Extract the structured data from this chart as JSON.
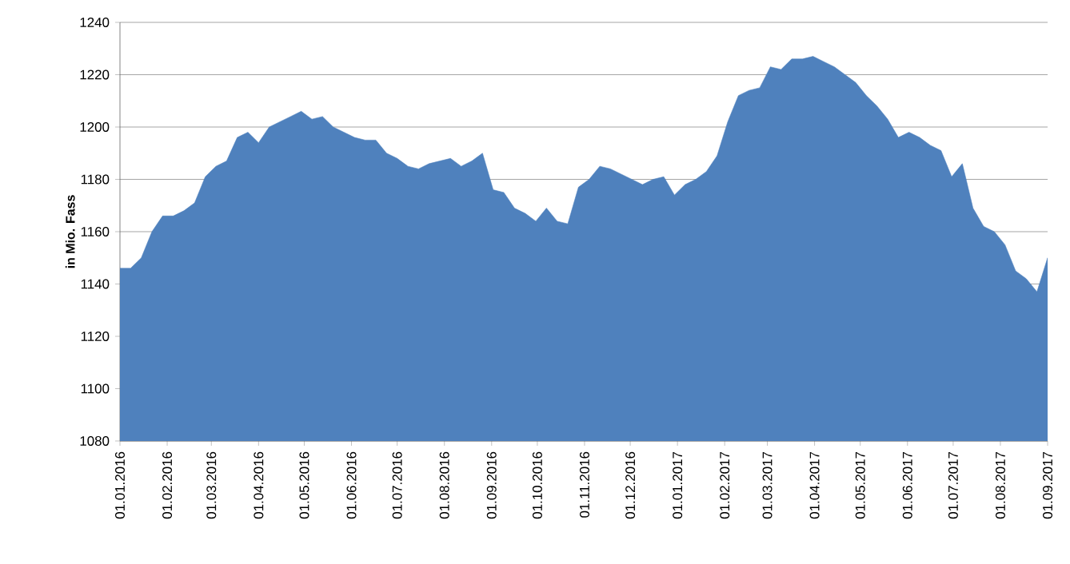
{
  "chart_data": {
    "type": "area",
    "ylabel": "in Mio. Fass",
    "color": "#4f81bd",
    "grid": "y",
    "x": [
      "2016-01-01",
      "2016-01-08",
      "2016-01-15",
      "2016-01-22",
      "2016-01-29",
      "2016-02-05",
      "2016-02-12",
      "2016-02-19",
      "2016-02-26",
      "2016-03-04",
      "2016-03-11",
      "2016-03-18",
      "2016-03-25",
      "2016-04-01",
      "2016-04-08",
      "2016-04-15",
      "2016-04-22",
      "2016-04-29",
      "2016-05-06",
      "2016-05-13",
      "2016-05-20",
      "2016-05-27",
      "2016-06-03",
      "2016-06-10",
      "2016-06-17",
      "2016-06-24",
      "2016-07-01",
      "2016-07-08",
      "2016-07-15",
      "2016-07-22",
      "2016-07-29",
      "2016-08-05",
      "2016-08-12",
      "2016-08-19",
      "2016-08-26",
      "2016-09-02",
      "2016-09-09",
      "2016-09-16",
      "2016-09-23",
      "2016-09-30",
      "2016-10-07",
      "2016-10-14",
      "2016-10-21",
      "2016-10-28",
      "2016-11-04",
      "2016-11-11",
      "2016-11-18",
      "2016-11-25",
      "2016-12-02",
      "2016-12-09",
      "2016-12-16",
      "2016-12-23",
      "2016-12-30",
      "2017-01-06",
      "2017-01-13",
      "2017-01-20",
      "2017-01-27",
      "2017-02-03",
      "2017-02-10",
      "2017-02-17",
      "2017-02-24",
      "2017-03-03",
      "2017-03-10",
      "2017-03-17",
      "2017-03-24",
      "2017-03-31",
      "2017-04-07",
      "2017-04-14",
      "2017-04-21",
      "2017-04-28",
      "2017-05-05",
      "2017-05-12",
      "2017-05-19",
      "2017-05-26",
      "2017-06-02",
      "2017-06-09",
      "2017-06-16",
      "2017-06-23",
      "2017-06-30",
      "2017-07-07",
      "2017-07-14",
      "2017-07-21",
      "2017-07-28",
      "2017-08-04",
      "2017-08-11",
      "2017-08-18",
      "2017-08-25",
      "2017-09-01"
    ],
    "values": [
      1146,
      1146,
      1150,
      1160,
      1166,
      1166,
      1168,
      1171,
      1181,
      1185,
      1187,
      1196,
      1198,
      1194,
      1200,
      1202,
      1204,
      1206,
      1203,
      1204,
      1200,
      1198,
      1196,
      1195,
      1195,
      1190,
      1188,
      1185,
      1184,
      1186,
      1187,
      1188,
      1185,
      1187,
      1190,
      1176,
      1175,
      1169,
      1167,
      1164,
      1169,
      1164,
      1163,
      1177,
      1180,
      1185,
      1184,
      1182,
      1180,
      1178,
      1180,
      1181,
      1174,
      1178,
      1180,
      1183,
      1189,
      1202,
      1212,
      1214,
      1215,
      1223,
      1222,
      1226,
      1226,
      1227,
      1225,
      1223,
      1220,
      1217,
      1212,
      1208,
      1203,
      1196,
      1198,
      1196,
      1193,
      1191,
      1181,
      1186,
      1169,
      1162,
      1160,
      1155,
      1145,
      1142,
      1137,
      1150
    ],
    "xlim": [
      "2016-01-01",
      "2017-09-01"
    ],
    "xticks": [
      {
        "value": "2016-01-01",
        "label": "01.01.2016"
      },
      {
        "value": "2016-02-01",
        "label": "01.02.2016"
      },
      {
        "value": "2016-03-01",
        "label": "01.03.2016"
      },
      {
        "value": "2016-04-01",
        "label": "01.04.2016"
      },
      {
        "value": "2016-05-01",
        "label": "01.05.2016"
      },
      {
        "value": "2016-06-01",
        "label": "01.06.2016"
      },
      {
        "value": "2016-07-01",
        "label": "01.07.2016"
      },
      {
        "value": "2016-08-01",
        "label": "01.08.2016"
      },
      {
        "value": "2016-09-01",
        "label": "01.09.2016"
      },
      {
        "value": "2016-10-01",
        "label": "01.10.2016"
      },
      {
        "value": "2016-11-01",
        "label": "01.11.2016"
      },
      {
        "value": "2016-12-01",
        "label": "01.12.2016"
      },
      {
        "value": "2017-01-01",
        "label": "01.01.2017"
      },
      {
        "value": "2017-02-01",
        "label": "01.02.2017"
      },
      {
        "value": "2017-03-01",
        "label": "01.03.2017"
      },
      {
        "value": "2017-04-01",
        "label": "01.04.2017"
      },
      {
        "value": "2017-05-01",
        "label": "01.05.2017"
      },
      {
        "value": "2017-06-01",
        "label": "01.06.2017"
      },
      {
        "value": "2017-07-01",
        "label": "01.07.2017"
      },
      {
        "value": "2017-08-01",
        "label": "01.08.2017"
      },
      {
        "value": "2017-09-01",
        "label": "01.09.2017"
      }
    ],
    "ylim": [
      1080,
      1240
    ],
    "yticks": [
      1080,
      1100,
      1120,
      1140,
      1160,
      1180,
      1200,
      1220,
      1240
    ]
  }
}
